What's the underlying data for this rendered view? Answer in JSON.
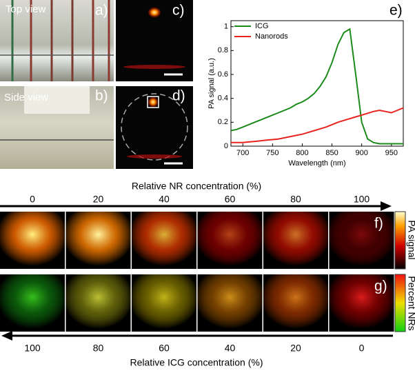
{
  "panel_labels": {
    "a": "a)",
    "b": "b)",
    "c": "c)",
    "d": "d)",
    "e": "e)",
    "f": "f)",
    "g": "g)"
  },
  "photo_captions": {
    "top": "Top view",
    "side": "Side view"
  },
  "concentration": {
    "nr_title": "Relative NR concentration (%)",
    "nr_values": [
      "0",
      "20",
      "40",
      "60",
      "80",
      "100"
    ],
    "icg_title": "Relative ICG concentration (%)",
    "icg_values": [
      "100",
      "80",
      "60",
      "40",
      "20",
      "0"
    ]
  },
  "colorbars": {
    "f": "PA signal",
    "g": "Percent NRs"
  },
  "chart_data": {
    "type": "line",
    "xlabel": "Wavelength (nm)",
    "ylabel": "PA signal (a.u.)",
    "x": [
      680,
      690,
      700,
      710,
      720,
      730,
      740,
      750,
      760,
      770,
      780,
      790,
      800,
      810,
      820,
      830,
      840,
      850,
      860,
      870,
      880,
      890,
      900,
      910,
      920,
      930,
      940,
      950,
      960,
      970
    ],
    "series": [
      {
        "name": "ICG",
        "color": "#1a8a1a",
        "values": [
          0.13,
          0.14,
          0.16,
          0.18,
          0.2,
          0.22,
          0.24,
          0.26,
          0.28,
          0.3,
          0.32,
          0.35,
          0.37,
          0.4,
          0.44,
          0.5,
          0.58,
          0.7,
          0.85,
          0.95,
          0.98,
          0.6,
          0.2,
          0.06,
          0.03,
          0.02,
          0.02,
          0.02,
          0.02,
          0.02
        ]
      },
      {
        "name": "Nanorods",
        "color": "#e8221c",
        "values": [
          0.03,
          0.03,
          0.03,
          0.035,
          0.04,
          0.045,
          0.05,
          0.055,
          0.06,
          0.07,
          0.08,
          0.09,
          0.1,
          0.115,
          0.13,
          0.145,
          0.16,
          0.18,
          0.2,
          0.215,
          0.23,
          0.245,
          0.26,
          0.275,
          0.29,
          0.3,
          0.29,
          0.28,
          0.3,
          0.32
        ]
      }
    ],
    "xlim": [
      680,
      970
    ],
    "xticks": [
      700,
      750,
      800,
      850,
      900,
      950
    ],
    "ylim": [
      0,
      1.05
    ],
    "yticks": [
      0,
      0.2,
      0.4,
      0.6,
      0.8,
      1
    ],
    "legend": "upper-left"
  }
}
